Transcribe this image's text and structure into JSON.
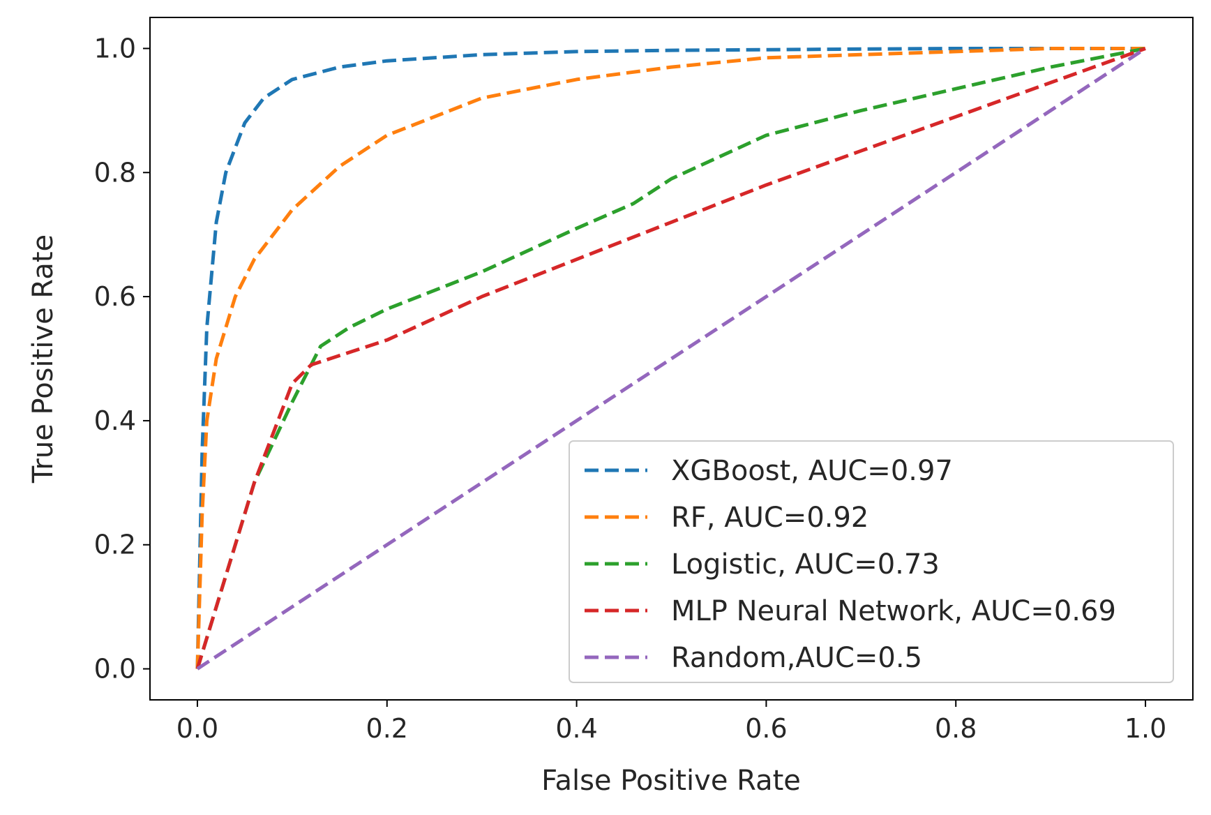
{
  "chart_data": {
    "type": "line",
    "title": "",
    "xlabel": "False Positive Rate",
    "ylabel": "True Positive Rate",
    "xlim": [
      -0.05,
      1.05
    ],
    "ylim": [
      -0.05,
      1.05
    ],
    "xticks": [
      "0.0",
      "0.2",
      "0.4",
      "0.6",
      "0.8",
      "1.0"
    ],
    "yticks": [
      "0.0",
      "0.2",
      "0.4",
      "0.6",
      "0.8",
      "1.0"
    ],
    "grid": false,
    "legend_position": "lower-right",
    "series": [
      {
        "name": "XGBoost, AUC=0.97",
        "color": "#1f77b4",
        "style": "dashed",
        "x": [
          0.0,
          0.005,
          0.01,
          0.02,
          0.03,
          0.05,
          0.07,
          0.1,
          0.15,
          0.2,
          0.3,
          0.4,
          0.5,
          0.6,
          0.7,
          0.8,
          0.9,
          1.0
        ],
        "y": [
          0.0,
          0.35,
          0.55,
          0.72,
          0.8,
          0.88,
          0.92,
          0.95,
          0.97,
          0.98,
          0.99,
          0.995,
          0.997,
          0.998,
          0.999,
          1.0,
          1.0,
          1.0
        ]
      },
      {
        "name": "RF, AUC=0.92",
        "color": "#ff7f0e",
        "style": "dashed",
        "x": [
          0.0,
          0.005,
          0.01,
          0.02,
          0.04,
          0.06,
          0.08,
          0.1,
          0.15,
          0.2,
          0.3,
          0.4,
          0.5,
          0.6,
          0.7,
          0.8,
          0.9,
          1.0
        ],
        "y": [
          0.0,
          0.25,
          0.4,
          0.5,
          0.6,
          0.66,
          0.7,
          0.74,
          0.81,
          0.86,
          0.92,
          0.95,
          0.97,
          0.985,
          0.99,
          0.995,
          1.0,
          1.0
        ]
      },
      {
        "name": "Logistic, AUC=0.73",
        "color": "#2ca02c",
        "style": "dashed",
        "x": [
          0.0,
          0.03,
          0.06,
          0.1,
          0.13,
          0.16,
          0.2,
          0.3,
          0.4,
          0.46,
          0.5,
          0.6,
          0.7,
          0.8,
          0.9,
          1.0
        ],
        "y": [
          0.0,
          0.15,
          0.3,
          0.43,
          0.52,
          0.55,
          0.58,
          0.64,
          0.71,
          0.75,
          0.79,
          0.86,
          0.9,
          0.935,
          0.97,
          1.0
        ]
      },
      {
        "name": "MLP Neural Network, AUC=0.69",
        "color": "#d62728",
        "style": "dashed",
        "x": [
          0.0,
          0.03,
          0.06,
          0.1,
          0.12,
          0.2,
          0.3,
          0.4,
          0.5,
          0.6,
          0.7,
          0.8,
          0.9,
          1.0
        ],
        "y": [
          0.0,
          0.15,
          0.3,
          0.46,
          0.49,
          0.53,
          0.6,
          0.66,
          0.72,
          0.78,
          0.835,
          0.89,
          0.945,
          1.0
        ]
      },
      {
        "name": "Random,AUC=0.5",
        "color": "#9467bd",
        "style": "dashed",
        "x": [
          0.0,
          1.0
        ],
        "y": [
          0.0,
          1.0
        ]
      }
    ]
  }
}
